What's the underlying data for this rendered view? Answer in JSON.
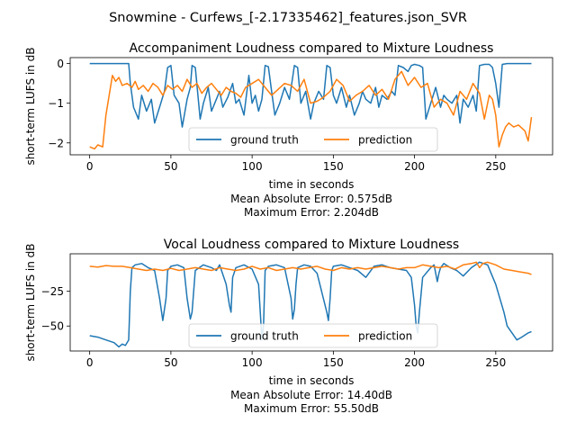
{
  "suptitle": "Snowmine - Curfews_[-2.17335462]_features.json_SVR",
  "chart_data": [
    {
      "type": "line",
      "title": "Accompaniment Loudness compared to Mixture Loudness",
      "xlabel": "time in seconds",
      "ylabel": "short-term LUFS in dB",
      "notes": [
        "Mean Absolute Error: 0.575dB",
        "Maximum Error: 2.204dB"
      ],
      "xlim": [
        -12,
        285
      ],
      "ylim": [
        -2.3,
        0.15
      ],
      "xticks": [
        0,
        50,
        100,
        150,
        200,
        250
      ],
      "yticks": [
        0,
        -1,
        -2
      ],
      "legend_position": "lower-center",
      "series": [
        {
          "name": "ground truth",
          "color": "#1f77b4",
          "x": [
            0,
            20,
            24,
            25,
            27,
            30,
            32,
            35,
            38,
            40,
            43,
            46,
            48,
            50,
            52,
            55,
            57,
            60,
            62,
            63,
            65,
            68,
            70,
            73,
            75,
            78,
            80,
            82,
            85,
            88,
            90,
            92,
            95,
            98,
            100,
            102,
            104,
            106,
            108,
            110,
            112,
            114,
            117,
            120,
            123,
            126,
            128,
            130,
            133,
            136,
            138,
            141,
            144,
            146,
            148,
            150,
            152,
            155,
            158,
            160,
            163,
            166,
            168,
            170,
            173,
            176,
            178,
            180,
            183,
            186,
            188,
            190,
            193,
            196,
            198,
            200,
            203,
            205,
            207,
            210,
            213,
            216,
            218,
            220,
            223,
            226,
            228,
            230,
            233,
            236,
            238,
            240,
            243,
            246,
            248,
            250,
            252,
            254,
            257,
            260,
            263,
            266,
            272
          ],
          "y": [
            0,
            0,
            0,
            -0.5,
            -1.1,
            -1.4,
            -0.8,
            -1.2,
            -0.9,
            -1.5,
            -1.1,
            -0.7,
            -0.1,
            -0.05,
            -0.8,
            -1.0,
            -1.6,
            -0.9,
            -0.6,
            -0.05,
            -0.1,
            -1.4,
            -1.0,
            -0.6,
            -1.2,
            -0.9,
            -0.7,
            -1.1,
            -0.85,
            -0.5,
            -1.0,
            -0.9,
            -1.3,
            -0.3,
            -1.0,
            -0.8,
            -1.2,
            -0.9,
            -0.05,
            -0.08,
            -0.7,
            -1.3,
            -1.0,
            -0.6,
            -0.9,
            -0.05,
            -0.1,
            -1.0,
            -0.7,
            -1.4,
            -1.0,
            -0.7,
            -0.9,
            -0.05,
            -0.1,
            -0.8,
            -1.0,
            -0.6,
            -1.1,
            -0.8,
            -1.3,
            -1.0,
            -0.7,
            -0.9,
            -1.0,
            -0.6,
            -1.1,
            -0.8,
            -0.9,
            -0.7,
            -0.8,
            -0.05,
            -0.1,
            -0.2,
            -0.05,
            -0.02,
            -0.05,
            -0.1,
            -1.4,
            -1.0,
            -0.6,
            -1.1,
            -0.8,
            -0.9,
            -1.0,
            -0.8,
            -1.5,
            -0.9,
            -1.1,
            -0.8,
            -1.2,
            -0.05,
            -0.02,
            -0.02,
            -0.1,
            -0.5,
            -1.1,
            -0.02,
            0,
            0,
            0,
            0,
            0
          ]
        },
        {
          "name": "prediction",
          "color": "#ff7f0e",
          "x": [
            0,
            3,
            5,
            8,
            10,
            12,
            14,
            16,
            18,
            20,
            23,
            26,
            28,
            30,
            33,
            36,
            39,
            42,
            45,
            48,
            51,
            54,
            57,
            60,
            63,
            66,
            69,
            72,
            75,
            78,
            81,
            84,
            87,
            90,
            93,
            96,
            100,
            104,
            108,
            112,
            116,
            120,
            124,
            128,
            132,
            136,
            140,
            144,
            148,
            152,
            156,
            160,
            164,
            168,
            172,
            176,
            180,
            184,
            188,
            192,
            196,
            200,
            204,
            208,
            212,
            216,
            220,
            224,
            228,
            232,
            236,
            240,
            243,
            246,
            248,
            250,
            252,
            254,
            256,
            258,
            261,
            264,
            268,
            270,
            272
          ],
          "y": [
            -2.1,
            -2.15,
            -2.05,
            -2.1,
            -1.3,
            -0.8,
            -0.3,
            -0.45,
            -0.35,
            -0.55,
            -0.5,
            -0.6,
            -0.45,
            -0.65,
            -0.55,
            -0.7,
            -0.5,
            -0.6,
            -0.8,
            -0.55,
            -0.65,
            -0.55,
            -0.7,
            -0.4,
            -0.6,
            -0.5,
            -0.75,
            -0.6,
            -0.5,
            -0.65,
            -0.8,
            -0.6,
            -0.7,
            -0.75,
            -0.85,
            -0.6,
            -0.5,
            -0.4,
            -0.6,
            -0.8,
            -0.65,
            -0.5,
            -0.55,
            -0.7,
            -0.4,
            -1.0,
            -0.95,
            -0.85,
            -0.7,
            -0.4,
            -0.55,
            -0.95,
            -0.8,
            -0.7,
            -0.55,
            -0.8,
            -0.65,
            -0.9,
            -0.4,
            -0.2,
            -0.55,
            -0.35,
            -0.6,
            -0.5,
            -1.1,
            -0.9,
            -1.0,
            -1.3,
            -0.7,
            -0.9,
            -0.5,
            -0.75,
            -1.4,
            -0.8,
            -0.9,
            -1.3,
            -2.1,
            -1.8,
            -1.6,
            -1.5,
            -1.6,
            -1.55,
            -1.7,
            -1.95,
            -1.35
          ]
        }
      ]
    },
    {
      "type": "line",
      "title": "Vocal Loudness compared to Mixture Loudness",
      "xlabel": "time in seconds",
      "ylabel": "short-term LUFS in dB",
      "notes": [
        "Mean Absolute Error: 14.40dB",
        "Maximum Error: 55.50dB"
      ],
      "xlim": [
        -12,
        285
      ],
      "ylim": [
        -68,
        2
      ],
      "xticks": [
        0,
        50,
        100,
        150,
        200,
        250
      ],
      "yticks": [
        -25,
        -50
      ],
      "legend_position": "lower-center",
      "series": [
        {
          "name": "ground truth",
          "color": "#1f77b4",
          "x": [
            0,
            5,
            10,
            15,
            18,
            20,
            22,
            24,
            25,
            26,
            28,
            32,
            36,
            40,
            43,
            45,
            47,
            48,
            50,
            54,
            58,
            60,
            62,
            63,
            65,
            70,
            75,
            78,
            80,
            84,
            86,
            87,
            88,
            90,
            95,
            100,
            104,
            105,
            106,
            107,
            108,
            110,
            115,
            120,
            124,
            125,
            126,
            127,
            128,
            132,
            136,
            140,
            146,
            147,
            148,
            149,
            150,
            155,
            160,
            165,
            170,
            175,
            180,
            185,
            190,
            195,
            198,
            200,
            201,
            202,
            203,
            205,
            210,
            212,
            214,
            215,
            216,
            218,
            222,
            226,
            230,
            235,
            240,
            245,
            250,
            255,
            257,
            260,
            263,
            266,
            270,
            272
          ],
          "y": [
            -57,
            -58,
            -60,
            -62,
            -65,
            -63,
            -64,
            -60,
            -25,
            -8,
            -6,
            -5,
            -8,
            -10,
            -30,
            -46,
            -30,
            -10,
            -7,
            -6,
            -8,
            -30,
            -45,
            -40,
            -10,
            -6,
            -8,
            -10,
            -6,
            -20,
            -35,
            -40,
            -15,
            -8,
            -6,
            -9,
            -20,
            -40,
            -60,
            -50,
            -10,
            -7,
            -6,
            -8,
            -30,
            -45,
            -38,
            -20,
            -8,
            -6,
            -7,
            -12,
            -40,
            -46,
            -30,
            -10,
            -7,
            -6,
            -8,
            -10,
            -15,
            -7,
            -6,
            -8,
            -9,
            -10,
            -15,
            -35,
            -50,
            -55,
            -40,
            -15,
            -8,
            -6,
            -18,
            -12,
            -8,
            -5,
            -8,
            -10,
            -14,
            -8,
            -4,
            -6,
            -20,
            -40,
            -50,
            -55,
            -60,
            -58,
            -55,
            -54
          ]
        },
        {
          "name": "prediction",
          "color": "#ff7f0e",
          "x": [
            0,
            5,
            10,
            15,
            20,
            25,
            30,
            35,
            40,
            45,
            50,
            55,
            60,
            65,
            70,
            75,
            80,
            85,
            90,
            95,
            100,
            105,
            110,
            115,
            120,
            125,
            130,
            135,
            140,
            145,
            150,
            155,
            160,
            165,
            170,
            175,
            180,
            185,
            190,
            195,
            200,
            205,
            210,
            215,
            220,
            225,
            230,
            235,
            238,
            240,
            242,
            245,
            250,
            255,
            260,
            265,
            270,
            272
          ],
          "y": [
            -7,
            -7.5,
            -6.5,
            -7,
            -7,
            -8,
            -9,
            -10,
            -9,
            -10,
            -8.5,
            -10,
            -9,
            -8,
            -9,
            -10,
            -8,
            -9,
            -10,
            -9,
            -7,
            -9,
            -8,
            -10,
            -9,
            -8,
            -9,
            -8,
            -7,
            -9,
            -10,
            -8,
            -9,
            -8,
            -9,
            -8,
            -7,
            -8,
            -9,
            -8,
            -8,
            -6,
            -7,
            -8,
            -7,
            -9,
            -6,
            -5,
            -4,
            -8,
            -5,
            -4,
            -6,
            -9,
            -10,
            -11,
            -12,
            -13
          ]
        }
      ]
    }
  ]
}
